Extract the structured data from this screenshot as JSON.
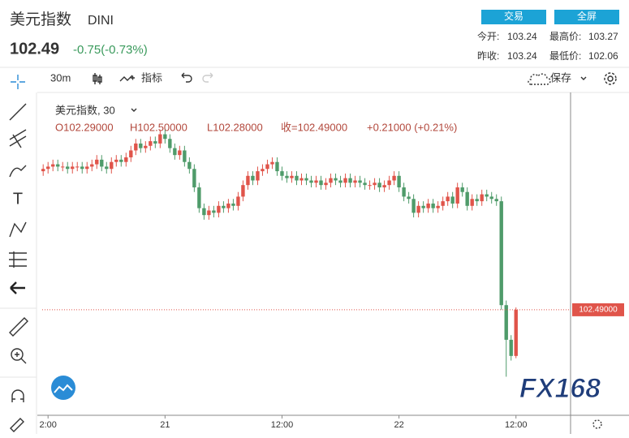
{
  "header": {
    "title": "美元指数",
    "code": "DINI",
    "price": "102.49",
    "change": "-0.75(-0.73%)",
    "buttons": [
      "交易",
      "全屏"
    ],
    "stats": [
      [
        "今开:",
        "103.24",
        "最高价:",
        "103.27"
      ],
      [
        "昨收:",
        "103.24",
        "最低价:",
        "102.06"
      ]
    ]
  },
  "toolbar": {
    "interval": "30m",
    "indicators": "指标",
    "save": "保存"
  },
  "watermark": "FX168",
  "chart_data": {
    "type": "candlestick",
    "title": "美元指数, 30",
    "ohlc_label": [
      "O102.29000",
      "H102.50000",
      "L102.28000",
      "收=102.49000",
      "+0.21000 (+0.21%)"
    ],
    "last_price_label": "102.49000",
    "up_color": "#e0544a",
    "down_color": "#4f9b6a",
    "grid": false,
    "xlim": [
      11.4,
      65.6
    ],
    "ylim": [
      102.04,
      103.41
    ],
    "xticks": [
      {
        "value": 12,
        "label": "2:00"
      },
      {
        "value": 24,
        "label": "21"
      },
      {
        "value": 36,
        "label": "12:00"
      },
      {
        "value": 48,
        "label": "22"
      },
      {
        "value": 60,
        "label": "12:00"
      }
    ],
    "x": [
      11.5,
      12,
      12.5,
      13,
      13.5,
      14,
      14.5,
      15,
      15.5,
      16,
      16.5,
      17,
      17.5,
      18,
      18.5,
      19,
      19.5,
      20,
      20.5,
      21,
      21.5,
      22,
      22.5,
      23,
      23.5,
      24,
      24.5,
      25,
      25.5,
      26,
      26.5,
      27,
      27.5,
      28,
      28.5,
      29,
      29.5,
      30,
      30.5,
      31,
      31.5,
      32,
      32.5,
      33,
      33.5,
      34,
      34.5,
      35,
      35.5,
      36,
      36.5,
      37,
      37.5,
      38,
      38.5,
      39,
      39.5,
      40,
      40.5,
      41,
      41.5,
      42,
      42.5,
      43,
      43.5,
      44,
      44.5,
      45,
      45.5,
      46,
      46.5,
      47,
      47.5,
      48,
      48.5,
      49,
      49.5,
      50,
      50.5,
      51,
      51.5,
      52,
      52.5,
      53,
      53.5,
      54,
      54.5,
      55,
      55.5,
      56,
      56.5,
      57,
      57.5,
      58,
      58.5,
      59,
      59.5,
      60
    ],
    "open": [
      103.09,
      103.1,
      103.11,
      103.12,
      103.11,
      103.11,
      103.1,
      103.11,
      103.11,
      103.1,
      103.11,
      103.12,
      103.14,
      103.11,
      103.1,
      103.13,
      103.14,
      103.13,
      103.15,
      103.18,
      103.21,
      103.19,
      103.2,
      103.22,
      103.21,
      103.25,
      103.23,
      103.19,
      103.16,
      103.18,
      103.13,
      103.1,
      103.02,
      102.93,
      102.9,
      102.92,
      102.91,
      102.94,
      102.93,
      102.95,
      102.94,
      102.98,
      103.03,
      103.07,
      103.05,
      103.09,
      103.1,
      103.12,
      103.13,
      103.09,
      103.07,
      103.06,
      103.07,
      103.05,
      103.06,
      103.05,
      103.04,
      103.05,
      103.03,
      103.04,
      103.06,
      103.05,
      103.04,
      103.06,
      103.04,
      103.05,
      103.04,
      103.03,
      103.03,
      103.04,
      103.02,
      103.03,
      103.05,
      103.07,
      103.02,
      102.98,
      102.97,
      102.91,
      102.94,
      102.93,
      102.95,
      102.93,
      102.94,
      102.96,
      102.98,
      102.95,
      103.02,
      103.0,
      102.94,
      102.97,
      102.96,
      102.99,
      102.98,
      102.97,
      102.96,
      102.51,
      102.36,
      102.29
    ],
    "high": [
      103.12,
      103.13,
      103.14,
      103.14,
      103.13,
      103.13,
      103.13,
      103.13,
      103.13,
      103.13,
      103.14,
      103.16,
      103.16,
      103.13,
      103.15,
      103.16,
      103.16,
      103.17,
      103.2,
      103.23,
      103.23,
      103.22,
      103.24,
      103.24,
      103.27,
      103.27,
      103.25,
      103.21,
      103.2,
      103.2,
      103.15,
      103.12,
      103.04,
      102.95,
      102.94,
      102.94,
      102.96,
      102.96,
      102.97,
      102.97,
      103.0,
      103.05,
      103.09,
      103.09,
      103.11,
      103.12,
      103.14,
      103.15,
      103.15,
      103.11,
      103.09,
      103.09,
      103.09,
      103.08,
      103.08,
      103.07,
      103.07,
      103.07,
      103.06,
      103.08,
      103.08,
      103.07,
      103.08,
      103.08,
      103.07,
      103.07,
      103.06,
      103.05,
      103.06,
      103.06,
      103.05,
      103.07,
      103.09,
      103.09,
      103.04,
      103.0,
      102.99,
      102.96,
      102.96,
      102.97,
      102.97,
      102.96,
      102.98,
      103.0,
      103.0,
      103.04,
      103.04,
      103.02,
      102.99,
      102.99,
      103.01,
      103.01,
      103.0,
      102.99,
      102.98,
      102.53,
      102.38,
      102.5
    ],
    "low": [
      103.07,
      103.08,
      103.09,
      103.09,
      103.09,
      103.08,
      103.08,
      103.09,
      103.08,
      103.08,
      103.09,
      103.1,
      103.09,
      103.08,
      103.08,
      103.11,
      103.11,
      103.11,
      103.13,
      103.16,
      103.17,
      103.17,
      103.18,
      103.19,
      103.19,
      103.21,
      103.17,
      103.14,
      103.14,
      103.11,
      103.08,
      103.0,
      102.91,
      102.88,
      102.88,
      102.89,
      102.89,
      102.91,
      102.91,
      102.92,
      102.92,
      102.96,
      103.01,
      103.03,
      103.03,
      103.07,
      103.08,
      103.1,
      103.07,
      103.05,
      103.04,
      103.04,
      103.03,
      103.03,
      103.03,
      103.02,
      103.02,
      103.01,
      103.01,
      103.02,
      103.03,
      103.02,
      103.02,
      103.02,
      103.02,
      103.02,
      103.01,
      103.01,
      103.01,
      103.0,
      103.0,
      103.01,
      103.03,
      103.0,
      102.96,
      102.95,
      102.89,
      102.89,
      102.91,
      102.91,
      102.91,
      102.91,
      102.92,
      102.94,
      102.93,
      102.93,
      102.98,
      102.92,
      102.92,
      102.94,
      102.94,
      102.96,
      102.95,
      102.94,
      102.49,
      102.2,
      102.27,
      102.28
    ],
    "close": [
      103.1,
      103.11,
      103.12,
      103.11,
      103.11,
      103.1,
      103.11,
      103.11,
      103.1,
      103.11,
      103.12,
      103.14,
      103.11,
      103.1,
      103.13,
      103.14,
      103.13,
      103.15,
      103.18,
      103.21,
      103.19,
      103.2,
      103.22,
      103.21,
      103.25,
      103.23,
      103.19,
      103.16,
      103.18,
      103.13,
      103.1,
      103.02,
      102.93,
      102.9,
      102.92,
      102.91,
      102.94,
      102.93,
      102.95,
      102.94,
      102.98,
      103.03,
      103.07,
      103.05,
      103.09,
      103.1,
      103.12,
      103.13,
      103.09,
      103.07,
      103.06,
      103.07,
      103.05,
      103.06,
      103.05,
      103.04,
      103.05,
      103.03,
      103.04,
      103.06,
      103.05,
      103.04,
      103.06,
      103.04,
      103.05,
      103.04,
      103.03,
      103.03,
      103.04,
      103.02,
      103.03,
      103.05,
      103.07,
      103.02,
      102.98,
      102.97,
      102.91,
      102.94,
      102.93,
      102.95,
      102.93,
      102.94,
      102.96,
      102.98,
      102.95,
      103.02,
      103.0,
      102.94,
      102.97,
      102.96,
      102.99,
      102.98,
      102.97,
      102.96,
      102.51,
      102.36,
      102.29,
      102.49
    ]
  }
}
